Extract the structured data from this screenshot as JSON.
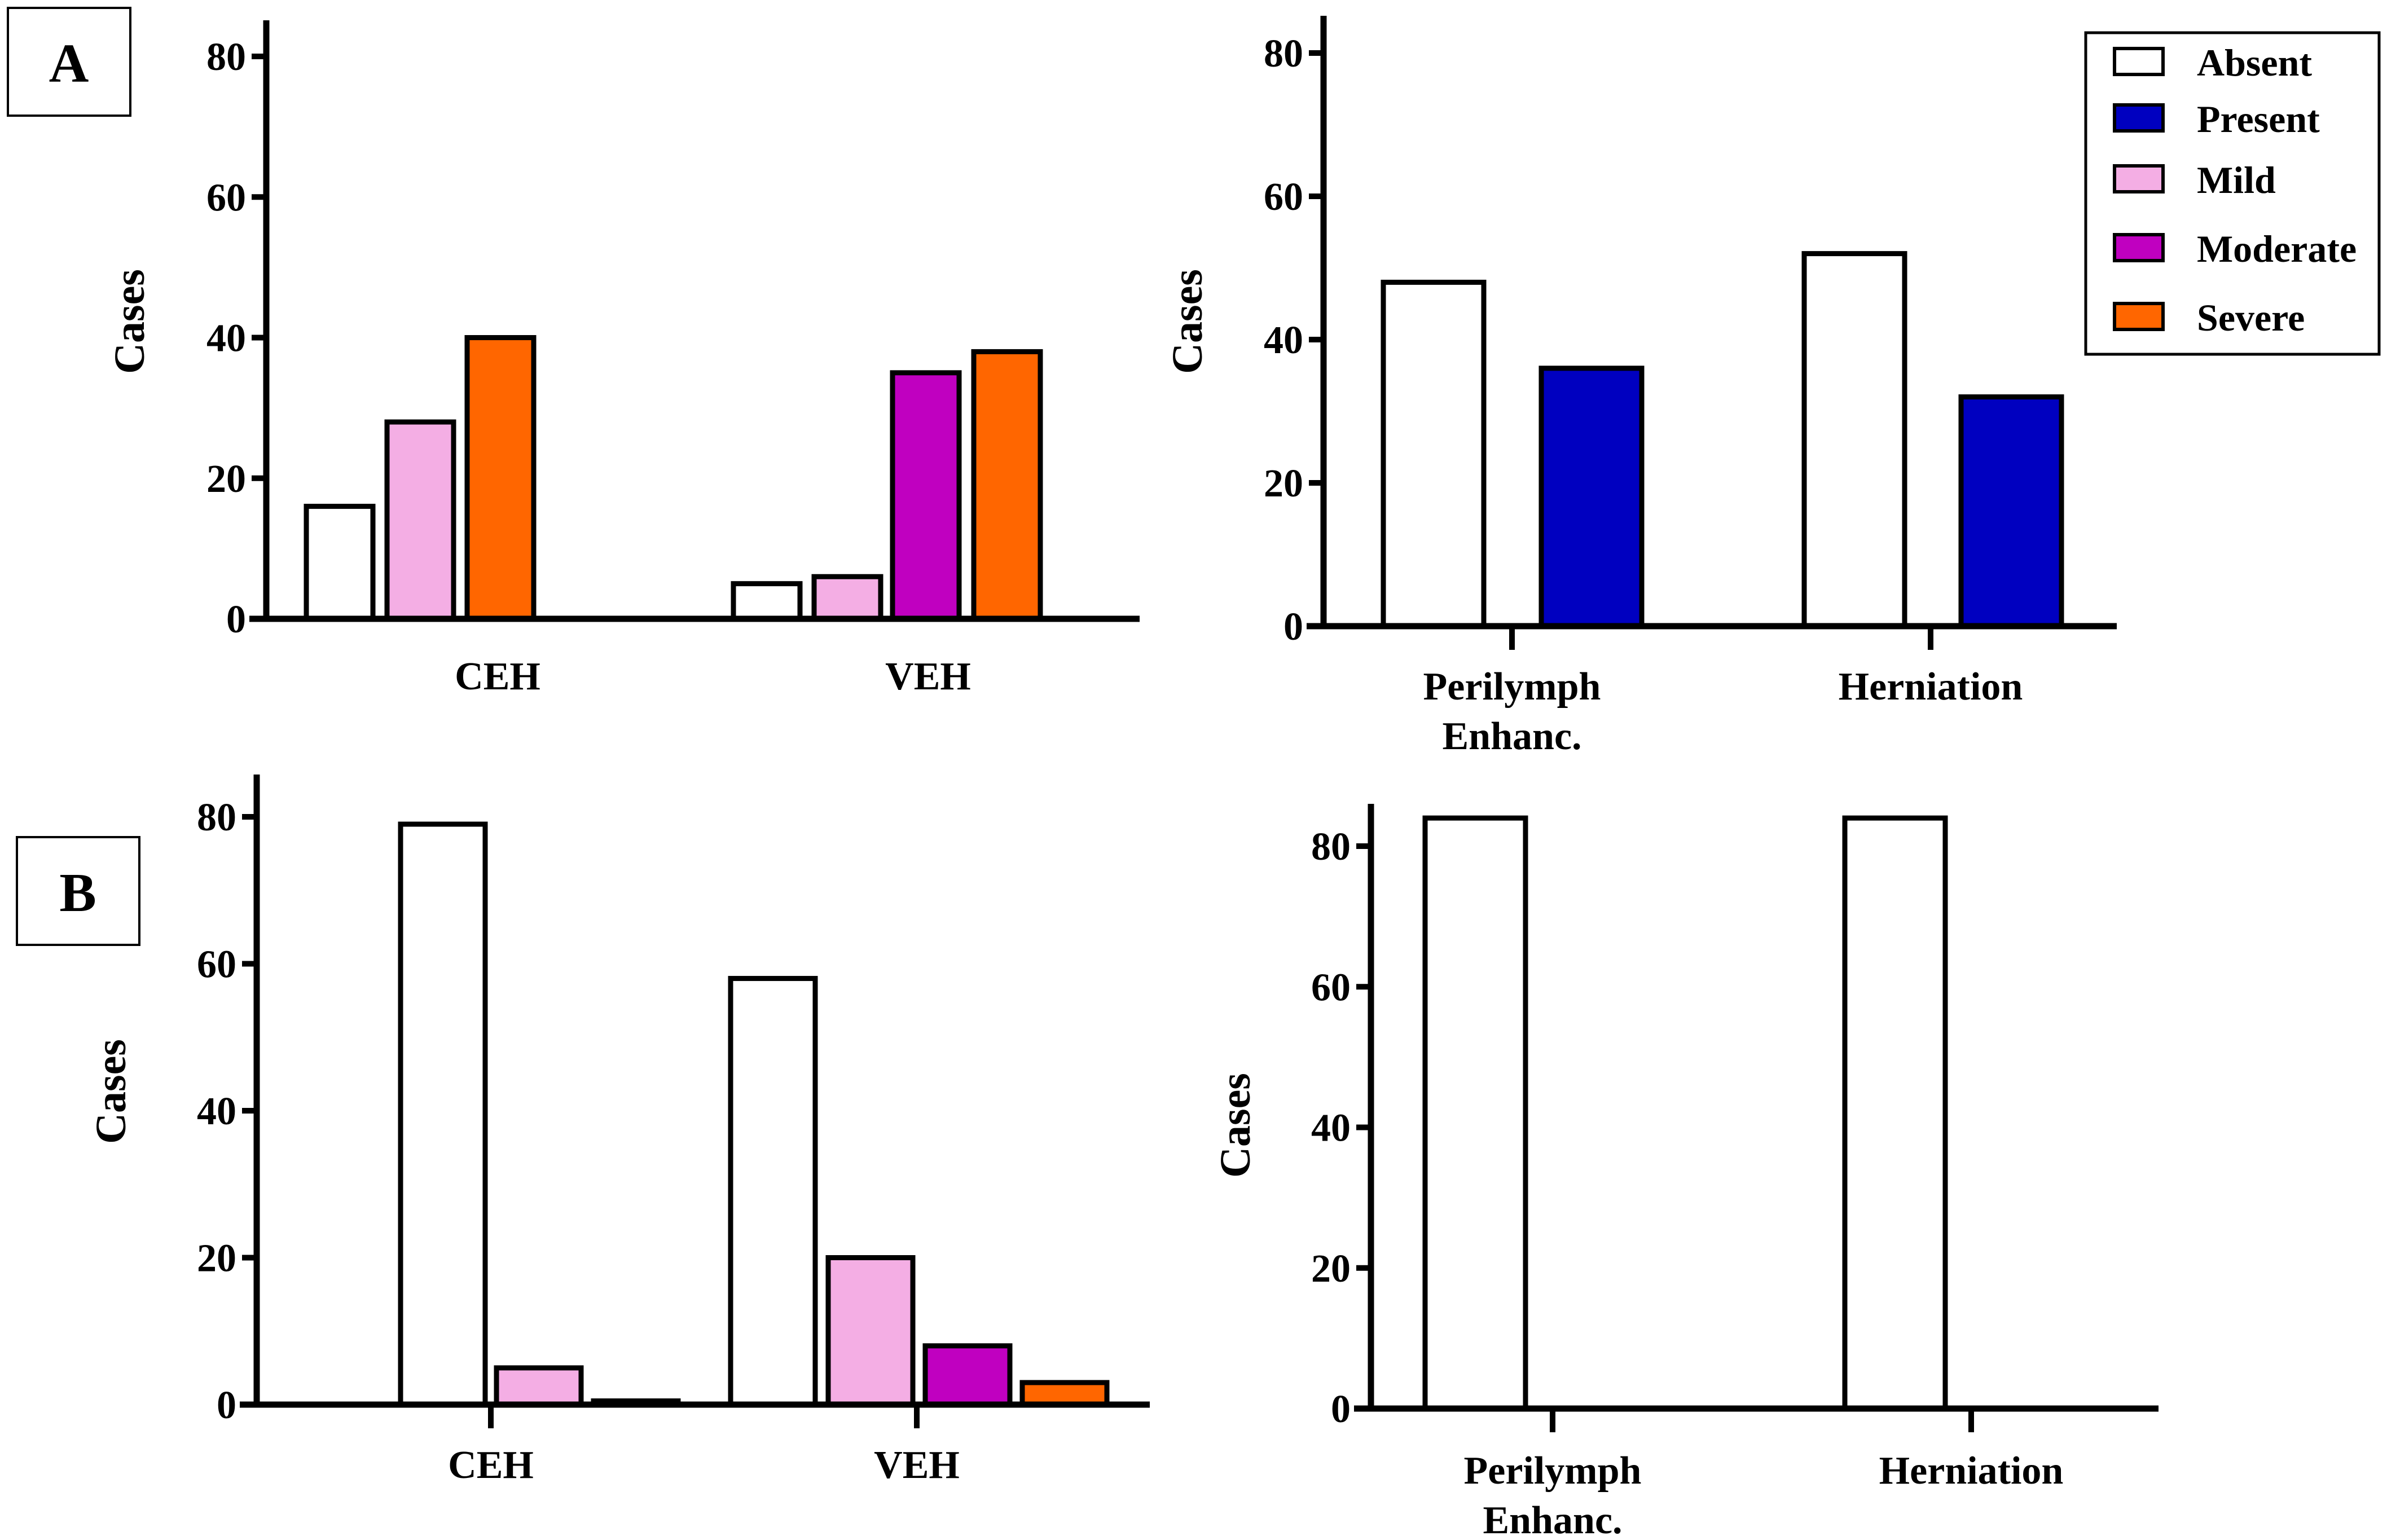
{
  "panels": [
    {
      "label": "A"
    },
    {
      "label": "B"
    }
  ],
  "legend": [
    {
      "name": "Absent",
      "color": "#ffffff"
    },
    {
      "name": "Present",
      "color": "#0000c0"
    },
    {
      "name": "Mild",
      "color": "#f4aee4"
    },
    {
      "name": "Moderate",
      "color": "#c000c0"
    },
    {
      "name": "Severe",
      "color": "#ff6600"
    }
  ],
  "chart_data": [
    {
      "panel": "A",
      "type": "bar",
      "ylabel": "Cases",
      "ylim": [
        0,
        85
      ],
      "yticks": [
        0,
        20,
        40,
        60,
        80
      ],
      "categories": [
        "CEH",
        "VEH"
      ],
      "series": [
        {
          "name": "Absent",
          "values": [
            16,
            5
          ]
        },
        {
          "name": "Mild",
          "values": [
            28,
            6
          ]
        },
        {
          "name": "Moderate",
          "values": [
            0,
            35
          ]
        },
        {
          "name": "Severe",
          "values": [
            40,
            38
          ]
        }
      ]
    },
    {
      "panel": "A",
      "type": "bar",
      "ylabel": "Cases",
      "ylim": [
        0,
        86
      ],
      "yticks": [
        0,
        20,
        40,
        60,
        80
      ],
      "categories": [
        "Perilymph Enhanc.",
        "Herniation"
      ],
      "series": [
        {
          "name": "Absent",
          "values": [
            48,
            52
          ]
        },
        {
          "name": "Present",
          "values": [
            36,
            32
          ]
        }
      ]
    },
    {
      "panel": "B",
      "type": "bar",
      "ylabel": "Cases",
      "ylim": [
        0,
        86
      ],
      "yticks": [
        0,
        20,
        40,
        60,
        80
      ],
      "categories": [
        "CEH",
        "VEH"
      ],
      "series": [
        {
          "name": "Absent",
          "values": [
            79,
            58
          ]
        },
        {
          "name": "Mild",
          "values": [
            5,
            20
          ]
        },
        {
          "name": "Moderate",
          "values": [
            0,
            8
          ]
        },
        {
          "name": "Severe",
          "values": [
            0.5,
            3
          ]
        }
      ]
    },
    {
      "panel": "B",
      "type": "bar",
      "ylabel": "Cases",
      "ylim": [
        0,
        86
      ],
      "yticks": [
        0,
        20,
        40,
        60,
        80
      ],
      "categories": [
        "Perilymph Enhanc.",
        "Herniation"
      ],
      "series": [
        {
          "name": "Absent",
          "values": [
            84,
            84
          ]
        },
        {
          "name": "Present",
          "values": [
            0,
            0
          ]
        }
      ]
    }
  ]
}
